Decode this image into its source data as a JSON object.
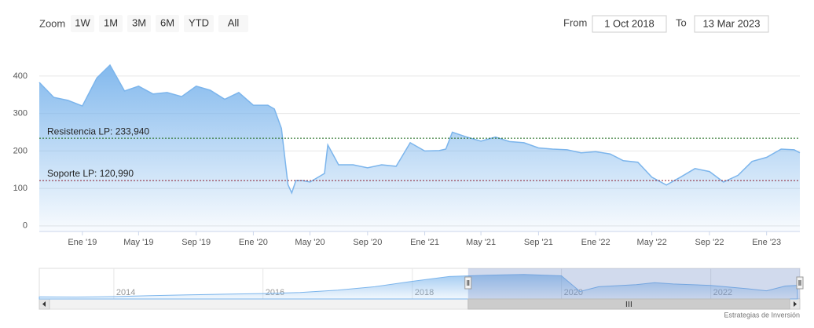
{
  "range_selector": {
    "label": "Zoom",
    "buttons": [
      "1W",
      "1M",
      "3M",
      "6M",
      "YTD",
      "All"
    ],
    "from_label": "From",
    "from": "1 Oct 2018",
    "to_label": "To",
    "to": "13 Mar 2023"
  },
  "chart_data": {
    "type": "area",
    "color": "#7cb5ec",
    "x": [
      "2018-10-01",
      "2018-11-01",
      "2018-12-01",
      "2019-01-01",
      "2019-02-01",
      "2019-03-01",
      "2019-04-01",
      "2019-05-01",
      "2019-06-01",
      "2019-07-01",
      "2019-08-01",
      "2019-09-01",
      "2019-10-01",
      "2019-11-01",
      "2019-12-01",
      "2020-01-01",
      "2020-02-01",
      "2020-02-15",
      "2020-03-01",
      "2020-03-15",
      "2020-03-23",
      "2020-04-01",
      "2020-04-15",
      "2020-05-01",
      "2020-06-01",
      "2020-06-08",
      "2020-07-01",
      "2020-08-01",
      "2020-09-01",
      "2020-10-01",
      "2020-11-01",
      "2020-12-01",
      "2021-01-01",
      "2021-02-01",
      "2021-02-15",
      "2021-03-01",
      "2021-04-01",
      "2021-05-01",
      "2021-06-01",
      "2021-07-01",
      "2021-08-01",
      "2021-09-01",
      "2021-10-01",
      "2021-11-01",
      "2021-12-01",
      "2022-01-01",
      "2022-02-01",
      "2022-03-01",
      "2022-04-01",
      "2022-05-01",
      "2022-06-01",
      "2022-07-01",
      "2022-08-01",
      "2022-09-01",
      "2022-10-01",
      "2022-11-01",
      "2022-12-01",
      "2023-01-01",
      "2023-02-01",
      "2023-03-01",
      "2023-03-13"
    ],
    "values": [
      383,
      343,
      335,
      320,
      395,
      429,
      360,
      373,
      352,
      356,
      345,
      373,
      362,
      338,
      356,
      322,
      322,
      312,
      260,
      110,
      88,
      121,
      121,
      117,
      140,
      216,
      163,
      163,
      155,
      163,
      159,
      222,
      200,
      201,
      205,
      250,
      237,
      226,
      237,
      225,
      222,
      208,
      205,
      203,
      195,
      198,
      192,
      174,
      170,
      130,
      109,
      130,
      153,
      145,
      117,
      135,
      172,
      183,
      205,
      203,
      195
    ],
    "xlim": [
      "2018-10-01",
      "2023-03-13"
    ],
    "xticks": [
      {
        "value": "2019-01",
        "label": "Ene '19"
      },
      {
        "value": "2019-05",
        "label": "May '19"
      },
      {
        "value": "2019-09",
        "label": "Sep '19"
      },
      {
        "value": "2020-01",
        "label": "Ene '20"
      },
      {
        "value": "2020-05",
        "label": "May '20"
      },
      {
        "value": "2020-09",
        "label": "Sep '20"
      },
      {
        "value": "2021-01",
        "label": "Ene '21"
      },
      {
        "value": "2021-05",
        "label": "May '21"
      },
      {
        "value": "2021-09",
        "label": "Sep '21"
      },
      {
        "value": "2022-01",
        "label": "Ene '22"
      },
      {
        "value": "2022-05",
        "label": "May '22"
      },
      {
        "value": "2022-09",
        "label": "Sep '22"
      },
      {
        "value": "2023-01",
        "label": "Ene '23"
      }
    ],
    "ylim": [
      -15,
      450
    ],
    "yticks": [
      0,
      100,
      200,
      300,
      400
    ],
    "grid": true,
    "plot_lines": [
      {
        "label": "Resistencia LP: 233,940",
        "value": 233.94,
        "color": "#1f6b1f"
      },
      {
        "label": "Soporte LP: 120,990",
        "value": 120.99,
        "color": "#8b1c2c"
      }
    ],
    "navigator": {
      "x": [
        "2013-01",
        "2013-07",
        "2014-01",
        "2014-07",
        "2015-01",
        "2015-07",
        "2016-01",
        "2016-07",
        "2017-01",
        "2017-07",
        "2018-01",
        "2018-07",
        "2019-01",
        "2019-07",
        "2020-01",
        "2020-04",
        "2020-07",
        "2021-01",
        "2021-04",
        "2021-07",
        "2022-01",
        "2022-07",
        "2022-10",
        "2023-01",
        "2023-03"
      ],
      "values": [
        30,
        28,
        35,
        50,
        60,
        70,
        80,
        95,
        130,
        180,
        260,
        330,
        350,
        360,
        340,
        110,
        180,
        210,
        240,
        220,
        200,
        150,
        120,
        190,
        200
      ],
      "xlim": [
        "2013-01-01",
        "2023-03-13"
      ],
      "ylim": [
        0,
        450
      ],
      "xticks": [
        2014,
        2016,
        2018,
        2020,
        2022
      ]
    }
  },
  "credits": "Estrategias de Inversión"
}
